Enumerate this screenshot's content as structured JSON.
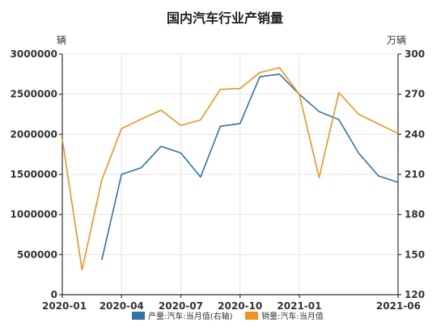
{
  "chart_data": {
    "type": "line",
    "title": "国内汽车行业产销量",
    "y_left_unit": "辆",
    "y_right_unit": "万辆",
    "x_tick_labels": [
      "2020-01",
      "2020-04",
      "2020-07",
      "2020-10",
      "2021-01",
      "2021-06"
    ],
    "x": [
      "2020-01",
      "2020-02",
      "2020-03",
      "2020-04",
      "2020-05",
      "2020-06",
      "2020-07",
      "2020-08",
      "2020-09",
      "2020-10",
      "2020-11",
      "2020-12",
      "2021-01",
      "2021-02",
      "2021-03",
      "2021-04",
      "2021-05",
      "2021-06"
    ],
    "ylim_left": [
      0,
      3000000
    ],
    "ylim_right": [
      120,
      300
    ],
    "y_left_ticks": [
      0,
      500000,
      1000000,
      1500000,
      2000000,
      2500000,
      3000000
    ],
    "y_right_ticks": [
      120,
      150,
      180,
      210,
      240,
      270,
      300
    ],
    "grid": true,
    "legend_position": "bottom",
    "series": [
      {
        "name": "产量:汽车:当月值(右轴)",
        "axis": "right",
        "color": "#2e75a6",
        "values": [
          null,
          null,
          146,
          210,
          215,
          231,
          226,
          208,
          246,
          248,
          283,
          285,
          270,
          257,
          251,
          226,
          209,
          204
        ]
      },
      {
        "name": "销量:汽车:当月值",
        "axis": "left",
        "color": "#f0931f",
        "values": [
          1940000,
          310000,
          1430000,
          2070000,
          2190000,
          2300000,
          2110000,
          2180000,
          2560000,
          2570000,
          2770000,
          2830000,
          2500000,
          1460000,
          2520000,
          2250000,
          2130000,
          2010000
        ]
      }
    ]
  }
}
